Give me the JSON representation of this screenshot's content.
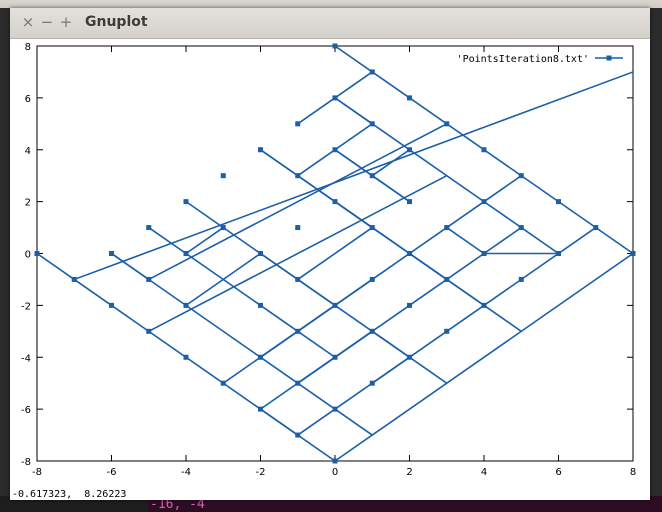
{
  "window": {
    "title": "Gnuplot",
    "close_glyph": "×",
    "minimize_glyph": "−",
    "maximize_glyph": "+"
  },
  "status_bar": {
    "coords": "-0.617323,  8.26223"
  },
  "terminal": {
    "visible_text": "-16, -4"
  },
  "colors": {
    "series": "#1a5fa8",
    "titlebar": "#dcd9d3",
    "plot_bg": "#ffffff"
  },
  "chart_data": {
    "type": "line",
    "xlim": [
      -8,
      8
    ],
    "ylim": [
      -8,
      8
    ],
    "x_ticks": [
      -8,
      -6,
      -4,
      -2,
      0,
      2,
      4,
      6,
      8
    ],
    "y_ticks": [
      -8,
      -6,
      -4,
      -2,
      0,
      2,
      4,
      6,
      8
    ],
    "x_tick_labels": [
      "-8",
      "-6",
      "-4",
      "-2",
      "0",
      "2",
      "4",
      "6",
      "8"
    ],
    "y_tick_labels": [
      "-8",
      "-6",
      "-4",
      "-2",
      "0",
      "2",
      "4",
      "6",
      "8"
    ],
    "grid": false,
    "legend_position": "top-right",
    "series": [
      {
        "name": "'PointsIteration8.txt'",
        "segments": [
          [
            [
              -8,
              0
            ],
            [
              -7,
              -1
            ]
          ],
          [
            [
              -7,
              -1
            ],
            [
              8,
              7
            ]
          ],
          [
            [
              -7,
              -1
            ],
            [
              0,
              -8
            ]
          ],
          [
            [
              -6,
              0
            ],
            [
              1,
              -7
            ]
          ],
          [
            [
              -6,
              0
            ],
            [
              -5,
              -1
            ]
          ],
          [
            [
              0,
              8
            ],
            [
              8,
              0
            ]
          ],
          [
            [
              8,
              0
            ],
            [
              0,
              -8
            ]
          ],
          [
            [
              -5,
              -1
            ],
            [
              3,
              5
            ]
          ],
          [
            [
              -5,
              -3
            ],
            [
              3,
              3
            ]
          ],
          [
            [
              -3,
              -5
            ],
            [
              5,
              3
            ]
          ],
          [
            [
              -1,
              -7
            ],
            [
              7,
              1
            ]
          ],
          [
            [
              -1,
              -5
            ],
            [
              3,
              -1
            ]
          ],
          [
            [
              -5,
              1
            ],
            [
              -4,
              0
            ]
          ],
          [
            [
              -4,
              2
            ],
            [
              3,
              -5
            ]
          ],
          [
            [
              -2,
              4
            ],
            [
              5,
              -3
            ]
          ],
          [
            [
              -3,
              1
            ],
            [
              -4,
              0
            ]
          ],
          [
            [
              -4,
              0
            ],
            [
              -1,
              -3
            ]
          ],
          [
            [
              -2,
              0
            ],
            [
              -4,
              -2
            ]
          ],
          [
            [
              -2,
              0
            ],
            [
              0,
              -2
            ]
          ],
          [
            [
              -2,
              4
            ],
            [
              2,
              0
            ]
          ],
          [
            [
              0,
              6
            ],
            [
              4,
              2
            ]
          ],
          [
            [
              1,
              7
            ],
            [
              -1,
              5
            ]
          ],
          [
            [
              0,
              6
            ],
            [
              1,
              5
            ]
          ],
          [
            [
              1,
              5
            ],
            [
              -1,
              3
            ]
          ],
          [
            [
              0,
              4
            ],
            [
              2,
              2
            ]
          ],
          [
            [
              0,
              4
            ],
            [
              1,
              3
            ]
          ],
          [
            [
              2,
              4
            ],
            [
              1,
              3
            ]
          ],
          [
            [
              1,
              3
            ],
            [
              2,
              2
            ]
          ],
          [
            [
              0,
              2
            ],
            [
              1,
              1
            ]
          ],
          [
            [
              1,
              1
            ],
            [
              -1,
              -1
            ]
          ],
          [
            [
              1,
              -1
            ],
            [
              -1,
              -3
            ]
          ],
          [
            [
              1,
              -3
            ],
            [
              -2,
              -6
            ]
          ],
          [
            [
              -2,
              -6
            ],
            [
              -1,
              -7
            ]
          ],
          [
            [
              -2,
              -4
            ],
            [
              0,
              -2
            ]
          ],
          [
            [
              0,
              -4
            ],
            [
              -1,
              -5
            ]
          ],
          [
            [
              -1,
              -3
            ],
            [
              -2,
              -4
            ]
          ],
          [
            [
              0,
              -4
            ],
            [
              -1,
              -3
            ]
          ],
          [
            [
              0,
              -4
            ],
            [
              1,
              -3
            ]
          ],
          [
            [
              2,
              -4
            ],
            [
              1,
              -3
            ]
          ],
          [
            [
              1,
              -5
            ],
            [
              2,
              -4
            ]
          ],
          [
            [
              2,
              0
            ],
            [
              3,
              -1
            ]
          ],
          [
            [
              2,
              0
            ],
            [
              4,
              -2
            ]
          ],
          [
            [
              3,
              1
            ],
            [
              4,
              0
            ]
          ],
          [
            [
              4,
              0
            ],
            [
              5,
              1
            ]
          ],
          [
            [
              4,
              2
            ],
            [
              5,
              1
            ]
          ],
          [
            [
              5,
              1
            ],
            [
              6,
              0
            ]
          ],
          [
            [
              3,
              -1
            ],
            [
              4,
              0
            ]
          ],
          [
            [
              4,
              0
            ],
            [
              6,
              0
            ]
          ]
        ],
        "points": [
          [
            -8,
            0
          ],
          [
            -7,
            -1
          ],
          [
            -6,
            0
          ],
          [
            -6,
            -2
          ],
          [
            -5,
            1
          ],
          [
            -5,
            -1
          ],
          [
            -5,
            -3
          ],
          [
            -4,
            2
          ],
          [
            -4,
            0
          ],
          [
            -4,
            -2
          ],
          [
            -4,
            -4
          ],
          [
            -3,
            3
          ],
          [
            -3,
            1
          ],
          [
            -3,
            -5
          ],
          [
            -2,
            4
          ],
          [
            -2,
            0
          ],
          [
            -2,
            -2
          ],
          [
            -2,
            -4
          ],
          [
            -2,
            -6
          ],
          [
            -1,
            5
          ],
          [
            -1,
            3
          ],
          [
            -1,
            1
          ],
          [
            -1,
            -1
          ],
          [
            -1,
            -3
          ],
          [
            -1,
            -5
          ],
          [
            -1,
            -7
          ],
          [
            0,
            8
          ],
          [
            0,
            6
          ],
          [
            0,
            4
          ],
          [
            0,
            2
          ],
          [
            0,
            -2
          ],
          [
            0,
            -4
          ],
          [
            0,
            -6
          ],
          [
            0,
            -8
          ],
          [
            1,
            7
          ],
          [
            1,
            5
          ],
          [
            1,
            3
          ],
          [
            1,
            1
          ],
          [
            1,
            -1
          ],
          [
            1,
            -3
          ],
          [
            1,
            -5
          ],
          [
            2,
            6
          ],
          [
            2,
            4
          ],
          [
            2,
            2
          ],
          [
            2,
            0
          ],
          [
            2,
            -2
          ],
          [
            2,
            -4
          ],
          [
            3,
            5
          ],
          [
            3,
            1
          ],
          [
            3,
            -1
          ],
          [
            3,
            -3
          ],
          [
            4,
            4
          ],
          [
            4,
            2
          ],
          [
            4,
            0
          ],
          [
            4,
            -2
          ],
          [
            5,
            3
          ],
          [
            5,
            1
          ],
          [
            5,
            -1
          ],
          [
            6,
            2
          ],
          [
            6,
            0
          ],
          [
            7,
            1
          ],
          [
            8,
            0
          ]
        ]
      }
    ]
  }
}
